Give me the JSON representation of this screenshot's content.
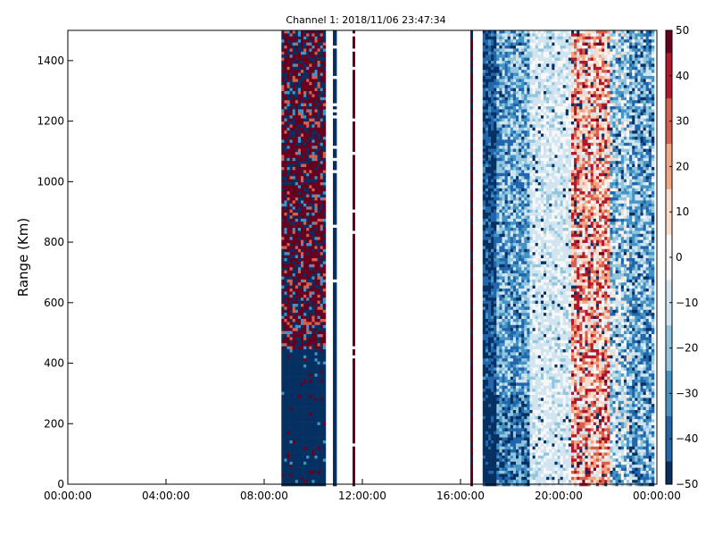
{
  "chart_data": {
    "type": "heatmap",
    "title": "Channel 1: 2018/11/06 23:47:34",
    "xlabel": "",
    "ylabel": "Range (Km)",
    "x_ticks": [
      "00:00:00",
      "04:00:00",
      "08:00:00",
      "12:00:00",
      "16:00:00",
      "20:00:00",
      "00:00:00"
    ],
    "x_range_hours": [
      0,
      24
    ],
    "y_ticks": [
      0,
      200,
      400,
      600,
      800,
      1000,
      1200,
      1400
    ],
    "ylim": [
      0,
      1500
    ],
    "colorbar": {
      "range": [
        -50,
        50
      ],
      "ticks": [
        50,
        40,
        30,
        20,
        10,
        0,
        -10,
        -20,
        -30,
        -40,
        -50
      ],
      "colormap": [
        "#053061",
        "#2166ac",
        "#4393c3",
        "#92c5de",
        "#d1e5f0",
        "#f7f7f7",
        "#fddbc7",
        "#f4a582",
        "#d6604d",
        "#b2182b",
        "#67001f"
      ]
    },
    "regions": [
      {
        "hours": [
          8.7,
          10.5
        ],
        "description": "noisy saturated block: dark red/blue above ~450 km, mostly dark blue below"
      },
      {
        "hours": [
          10.8,
          10.95
        ],
        "description": "thin dark blue line"
      },
      {
        "hours": [
          11.6,
          11.7
        ],
        "description": "thin dark red line"
      },
      {
        "hours": [
          16.4,
          16.5
        ],
        "description": "thin dark red line"
      },
      {
        "hours": [
          16.9,
          23.8
        ],
        "description": "structured field: blues with pale band ~19-20.5h and red band ~20.5-22h"
      }
    ],
    "grid": false,
    "legend": "colorbar right"
  }
}
